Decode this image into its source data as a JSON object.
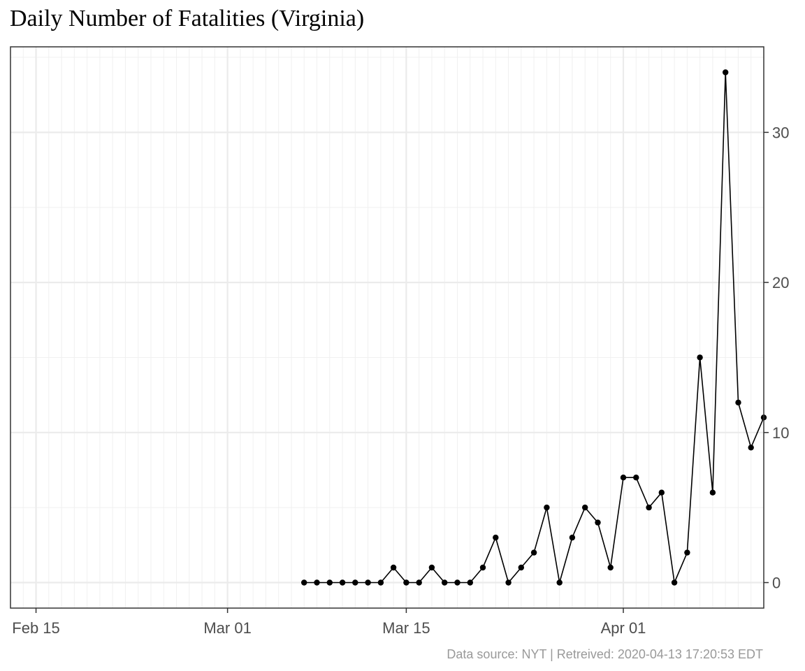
{
  "chart_data": {
    "type": "line",
    "title": "Daily Number of Fatalities (Virginia)",
    "caption": "Data source: NYT  |  Retreived: 2020-04-13 17:20:53 EDT",
    "xlabel": "",
    "ylabel": "",
    "x_axis_type": "date",
    "xlim": [
      "2020-02-13",
      "2020-04-12"
    ],
    "ylim": [
      -1.7,
      35.7
    ],
    "x_ticks": [
      {
        "date": "2020-02-15",
        "label": "Feb 15"
      },
      {
        "date": "2020-03-01",
        "label": "Mar 01"
      },
      {
        "date": "2020-03-15",
        "label": "Mar 15"
      },
      {
        "date": "2020-04-01",
        "label": "Apr 01"
      }
    ],
    "y_ticks": [
      0,
      10,
      20,
      30
    ],
    "y_axis_position": "right",
    "grid": true,
    "series": [
      {
        "color": "#000000",
        "x": [
          "2020-03-07",
          "2020-03-08",
          "2020-03-09",
          "2020-03-10",
          "2020-03-11",
          "2020-03-12",
          "2020-03-13",
          "2020-03-14",
          "2020-03-15",
          "2020-03-16",
          "2020-03-17",
          "2020-03-18",
          "2020-03-19",
          "2020-03-20",
          "2020-03-21",
          "2020-03-22",
          "2020-03-23",
          "2020-03-24",
          "2020-03-25",
          "2020-03-26",
          "2020-03-27",
          "2020-03-28",
          "2020-03-29",
          "2020-03-30",
          "2020-03-31",
          "2020-04-01",
          "2020-04-02",
          "2020-04-03",
          "2020-04-04",
          "2020-04-05",
          "2020-04-06",
          "2020-04-07",
          "2020-04-08",
          "2020-04-09",
          "2020-04-10",
          "2020-04-11",
          "2020-04-12"
        ],
        "values": [
          0,
          0,
          0,
          0,
          0,
          0,
          0,
          1,
          0,
          0,
          1,
          0,
          0,
          0,
          1,
          3,
          0,
          1,
          2,
          5,
          0,
          3,
          5,
          4,
          1,
          7,
          7,
          5,
          6,
          0,
          2,
          15,
          6,
          34,
          12,
          9,
          11
        ]
      }
    ]
  }
}
